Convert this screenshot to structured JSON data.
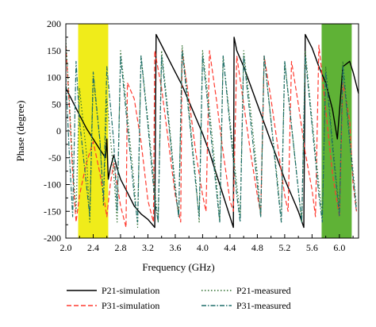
{
  "chart_data": {
    "type": "line",
    "xlabel": "Frequency (GHz)",
    "ylabel": "Phase (degree)",
    "xlim": [
      2.0,
      6.28
    ],
    "ylim": [
      -200,
      200
    ],
    "xticks": [
      "2.0",
      "2.4",
      "2.8",
      "3.2",
      "3.6",
      "4.0",
      "4.4",
      "4.8",
      "5.2",
      "5.6",
      "6.0"
    ],
    "yticks": [
      "200",
      "150",
      "100",
      "50",
      "0",
      "-50",
      "-100",
      "-150",
      "-200"
    ],
    "grid": false,
    "legend_position": "bottom",
    "highlight_bands": [
      {
        "x": [
          2.18,
          2.62
        ],
        "color": "#f0ec1a"
      },
      {
        "x": [
          5.74,
          6.18
        ],
        "color": "#5fb236"
      }
    ],
    "series": [
      {
        "name": "P21-simulation",
        "color": "#000000",
        "dash": "solid",
        "points": [
          [
            2.0,
            80
          ],
          [
            2.1,
            55
          ],
          [
            2.2,
            30
          ],
          [
            2.3,
            5
          ],
          [
            2.4,
            -15
          ],
          [
            2.5,
            -35
          ],
          [
            2.58,
            -50
          ],
          [
            2.6,
            -15
          ],
          [
            2.62,
            -90
          ],
          [
            2.65,
            -70
          ],
          [
            2.7,
            -45
          ],
          [
            2.75,
            -70
          ],
          [
            2.8,
            -90
          ],
          [
            2.9,
            -115
          ],
          [
            3.0,
            -140
          ],
          [
            3.1,
            -155
          ],
          [
            3.2,
            -165
          ],
          [
            3.3,
            -180
          ],
          [
            3.32,
            180
          ],
          [
            3.4,
            160
          ],
          [
            3.5,
            135
          ],
          [
            3.6,
            110
          ],
          [
            3.7,
            85
          ],
          [
            3.8,
            55
          ],
          [
            3.9,
            25
          ],
          [
            4.0,
            -5
          ],
          [
            4.1,
            -40
          ],
          [
            4.2,
            -80
          ],
          [
            4.3,
            -120
          ],
          [
            4.4,
            -160
          ],
          [
            4.45,
            -180
          ],
          [
            4.46,
            175
          ],
          [
            4.5,
            150
          ],
          [
            4.6,
            120
          ],
          [
            4.7,
            85
          ],
          [
            4.8,
            50
          ],
          [
            4.9,
            15
          ],
          [
            5.0,
            -20
          ],
          [
            5.1,
            -55
          ],
          [
            5.2,
            -90
          ],
          [
            5.3,
            -120
          ],
          [
            5.4,
            -150
          ],
          [
            5.48,
            -180
          ],
          [
            5.5,
            180
          ],
          [
            5.6,
            155
          ],
          [
            5.7,
            120
          ],
          [
            5.8,
            90
          ],
          [
            5.9,
            40
          ],
          [
            5.97,
            -15
          ],
          [
            6.05,
            120
          ],
          [
            6.15,
            130
          ],
          [
            6.2,
            110
          ],
          [
            6.28,
            70
          ]
        ]
      },
      {
        "name": "P31-simulation",
        "color": "#ff3b30",
        "dash": "dashed",
        "points": [
          [
            2.0,
            160
          ],
          [
            2.05,
            50
          ],
          [
            2.1,
            -80
          ],
          [
            2.15,
            -170
          ],
          [
            2.2,
            -120
          ],
          [
            2.3,
            -60
          ],
          [
            2.4,
            -20
          ],
          [
            2.5,
            -80
          ],
          [
            2.6,
            -160
          ],
          [
            2.65,
            -100
          ],
          [
            2.7,
            -60
          ],
          [
            2.8,
            -140
          ],
          [
            2.88,
            -180
          ],
          [
            2.9,
            90
          ],
          [
            3.0,
            60
          ],
          [
            3.1,
            -20
          ],
          [
            3.2,
            -130
          ],
          [
            3.28,
            -170
          ],
          [
            3.3,
            150
          ],
          [
            3.4,
            80
          ],
          [
            3.5,
            -20
          ],
          [
            3.6,
            -120
          ],
          [
            3.68,
            -170
          ],
          [
            3.7,
            150
          ],
          [
            3.8,
            60
          ],
          [
            3.9,
            -40
          ],
          [
            4.0,
            -120
          ],
          [
            4.05,
            -150
          ],
          [
            4.1,
            150
          ],
          [
            4.2,
            60
          ],
          [
            4.3,
            -40
          ],
          [
            4.4,
            -130
          ],
          [
            4.45,
            -150
          ],
          [
            4.5,
            140
          ],
          [
            4.6,
            50
          ],
          [
            4.7,
            -40
          ],
          [
            4.8,
            -120
          ],
          [
            4.85,
            -155
          ],
          [
            4.9,
            140
          ],
          [
            5.0,
            60
          ],
          [
            5.1,
            -30
          ],
          [
            5.2,
            -120
          ],
          [
            5.25,
            -150
          ],
          [
            5.3,
            130
          ],
          [
            5.4,
            50
          ],
          [
            5.5,
            -40
          ],
          [
            5.6,
            -110
          ],
          [
            5.65,
            -160
          ],
          [
            5.7,
            160
          ],
          [
            5.8,
            40
          ],
          [
            5.9,
            -80
          ],
          [
            6.0,
            -160
          ],
          [
            6.05,
            90
          ],
          [
            6.15,
            20
          ],
          [
            6.2,
            -100
          ],
          [
            6.25,
            -150
          ]
        ]
      },
      {
        "name": "P21-measured",
        "color": "#2e6e2e",
        "dash": "dotted",
        "points": [
          [
            2.0,
            170
          ],
          [
            2.05,
            60
          ],
          [
            2.1,
            -60
          ],
          [
            2.15,
            -150
          ],
          [
            2.2,
            80
          ],
          [
            2.3,
            -40
          ],
          [
            2.35,
            -170
          ],
          [
            2.4,
            100
          ],
          [
            2.5,
            -20
          ],
          [
            2.55,
            -140
          ],
          [
            2.6,
            60
          ],
          [
            2.7,
            -80
          ],
          [
            2.75,
            -170
          ],
          [
            2.8,
            150
          ],
          [
            2.9,
            30
          ],
          [
            3.0,
            -100
          ],
          [
            3.05,
            -180
          ],
          [
            3.1,
            140
          ],
          [
            3.2,
            20
          ],
          [
            3.3,
            -110
          ],
          [
            3.35,
            -170
          ],
          [
            3.4,
            150
          ],
          [
            3.5,
            30
          ],
          [
            3.6,
            -100
          ],
          [
            3.65,
            -160
          ],
          [
            3.7,
            160
          ],
          [
            3.8,
            40
          ],
          [
            3.9,
            -90
          ],
          [
            3.95,
            -170
          ],
          [
            4.0,
            150
          ],
          [
            4.1,
            40
          ],
          [
            4.2,
            -90
          ],
          [
            4.25,
            -170
          ],
          [
            4.3,
            140
          ],
          [
            4.4,
            20
          ],
          [
            4.5,
            -100
          ],
          [
            4.55,
            -160
          ],
          [
            4.6,
            150
          ],
          [
            4.7,
            40
          ],
          [
            4.8,
            -80
          ],
          [
            4.85,
            -160
          ],
          [
            4.9,
            140
          ],
          [
            5.0,
            20
          ],
          [
            5.1,
            -100
          ],
          [
            5.15,
            -170
          ],
          [
            5.2,
            130
          ],
          [
            5.3,
            10
          ],
          [
            5.4,
            -110
          ],
          [
            5.45,
            -170
          ],
          [
            5.5,
            150
          ],
          [
            5.6,
            20
          ],
          [
            5.7,
            -100
          ],
          [
            5.75,
            -160
          ],
          [
            5.8,
            120
          ],
          [
            5.9,
            -20
          ],
          [
            6.0,
            -150
          ],
          [
            6.05,
            130
          ],
          [
            6.15,
            -10
          ],
          [
            6.25,
            -140
          ]
        ]
      },
      {
        "name": "P31-measured",
        "color": "#1f6f6a",
        "dash": "dashdot",
        "points": [
          [
            2.0,
            100
          ],
          [
            2.05,
            -40
          ],
          [
            2.1,
            -160
          ],
          [
            2.15,
            130
          ],
          [
            2.2,
            20
          ],
          [
            2.3,
            -100
          ],
          [
            2.35,
            -160
          ],
          [
            2.4,
            110
          ],
          [
            2.5,
            -20
          ],
          [
            2.55,
            -130
          ],
          [
            2.6,
            120
          ],
          [
            2.7,
            -20
          ],
          [
            2.75,
            -150
          ],
          [
            2.8,
            140
          ],
          [
            2.9,
            10
          ],
          [
            3.0,
            -120
          ],
          [
            3.05,
            -170
          ],
          [
            3.1,
            140
          ],
          [
            3.2,
            10
          ],
          [
            3.3,
            -130
          ],
          [
            3.35,
            -170
          ],
          [
            3.4,
            140
          ],
          [
            3.5,
            20
          ],
          [
            3.6,
            -110
          ],
          [
            3.65,
            -160
          ],
          [
            3.7,
            150
          ],
          [
            3.8,
            30
          ],
          [
            3.9,
            -100
          ],
          [
            3.95,
            -160
          ],
          [
            4.0,
            140
          ],
          [
            4.1,
            20
          ],
          [
            4.2,
            -110
          ],
          [
            4.25,
            -170
          ],
          [
            4.3,
            140
          ],
          [
            4.4,
            10
          ],
          [
            4.5,
            -120
          ],
          [
            4.55,
            -170
          ],
          [
            4.6,
            140
          ],
          [
            4.7,
            20
          ],
          [
            4.8,
            -100
          ],
          [
            4.85,
            -160
          ],
          [
            4.9,
            140
          ],
          [
            5.0,
            20
          ],
          [
            5.1,
            -110
          ],
          [
            5.15,
            -170
          ],
          [
            5.2,
            130
          ],
          [
            5.3,
            10
          ],
          [
            5.4,
            -110
          ],
          [
            5.45,
            -170
          ],
          [
            5.5,
            140
          ],
          [
            5.6,
            10
          ],
          [
            5.7,
            -120
          ],
          [
            5.75,
            -170
          ],
          [
            5.8,
            110
          ],
          [
            5.9,
            -30
          ],
          [
            6.0,
            -160
          ],
          [
            6.05,
            120
          ],
          [
            6.15,
            -20
          ],
          [
            6.25,
            -150
          ]
        ]
      }
    ]
  }
}
